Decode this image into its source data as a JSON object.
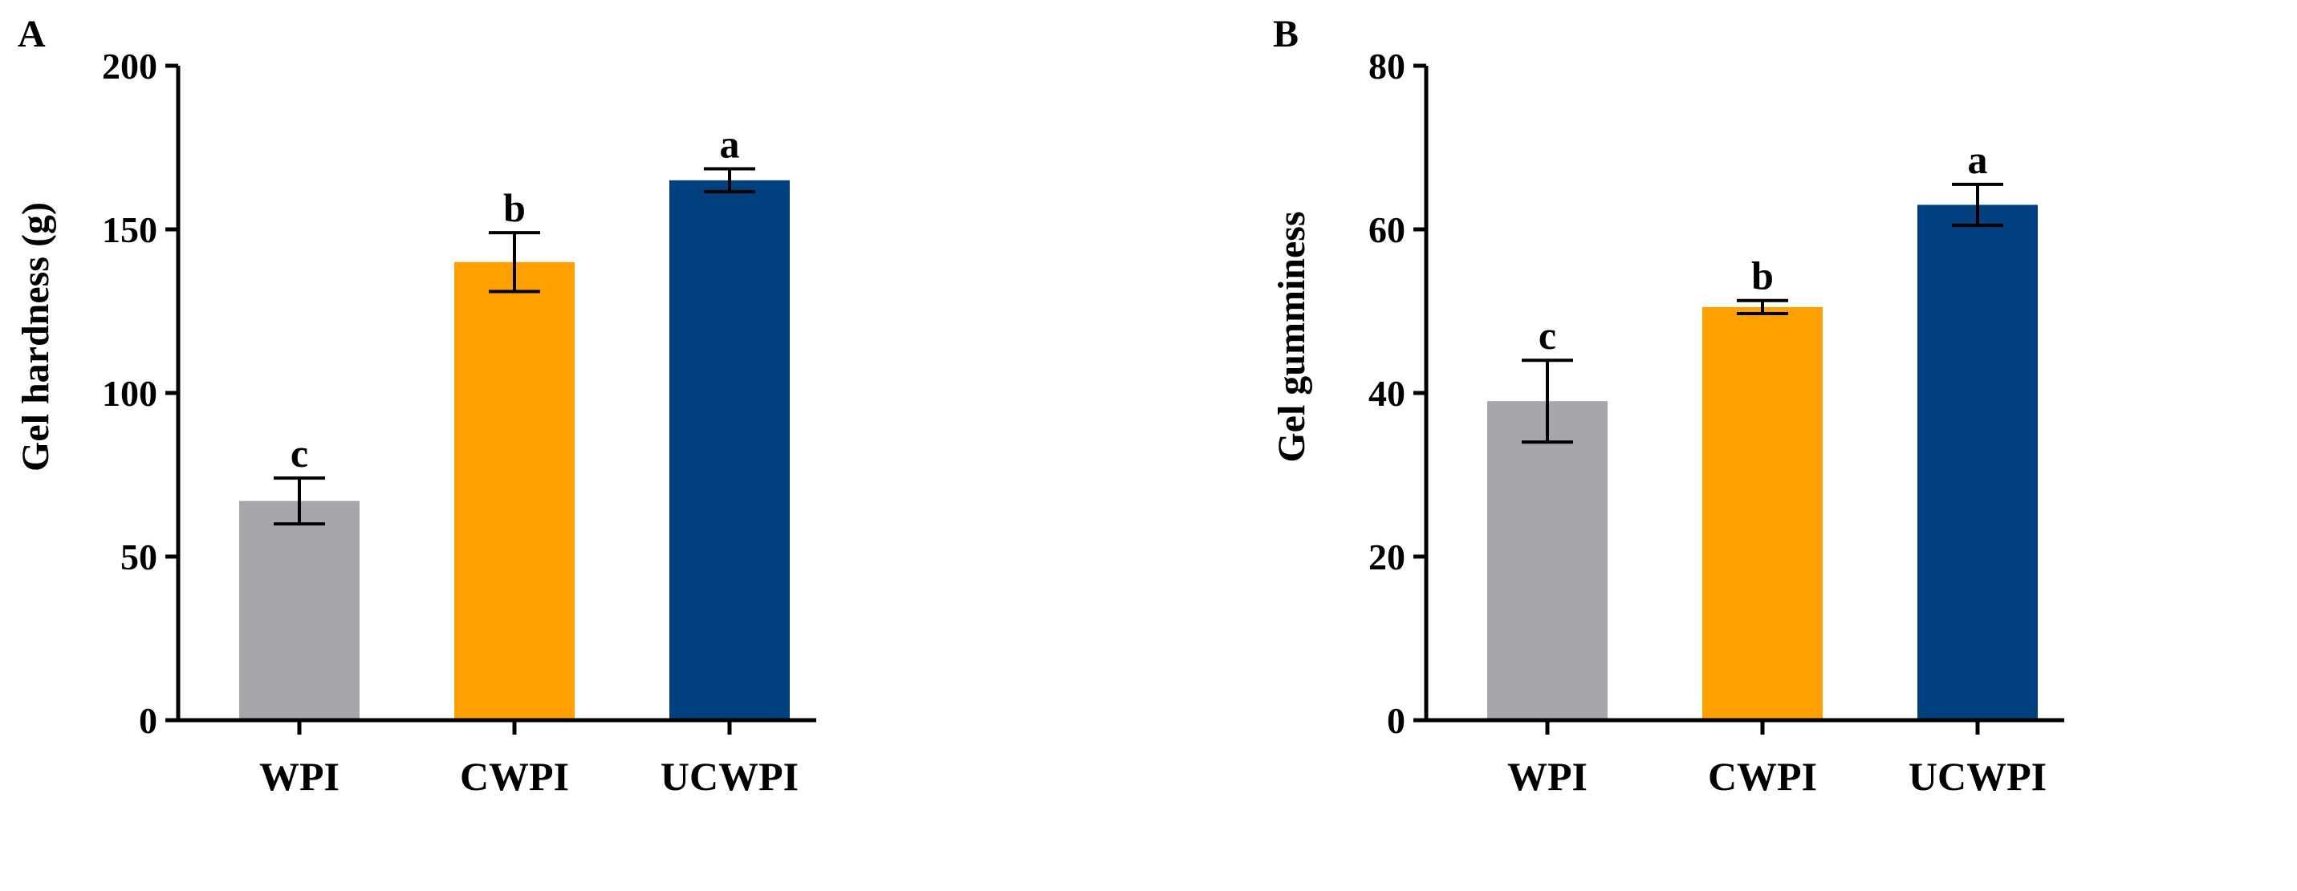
{
  "chart_data": [
    {
      "panel_label": "A",
      "type": "bar",
      "categories": [
        "WPI",
        "CWPI",
        "UCWPI"
      ],
      "values": [
        67,
        140,
        165
      ],
      "errors": [
        7,
        9,
        3.5
      ],
      "significance": [
        "c",
        "b",
        "a"
      ],
      "colors": [
        "#A6A6AB",
        "#FFA000",
        "#00407F"
      ],
      "ylabel": "Gel hardness (g)",
      "xlabel": "",
      "ylim": [
        0,
        200
      ],
      "yticks": [
        0,
        50,
        100,
        150,
        200
      ],
      "grid": false
    },
    {
      "panel_label": "B",
      "type": "bar",
      "categories": [
        "WPI",
        "CWPI",
        "UCWPI"
      ],
      "values": [
        39,
        50.5,
        63
      ],
      "errors": [
        5,
        0.8,
        2.5
      ],
      "significance": [
        "c",
        "b",
        "a"
      ],
      "colors": [
        "#A6A6AB",
        "#FFA000",
        "#00407F"
      ],
      "ylabel": "Gel gumminess",
      "xlabel": "",
      "ylim": [
        0,
        80
      ],
      "yticks": [
        0,
        20,
        40,
        60,
        80
      ],
      "grid": false
    }
  ]
}
